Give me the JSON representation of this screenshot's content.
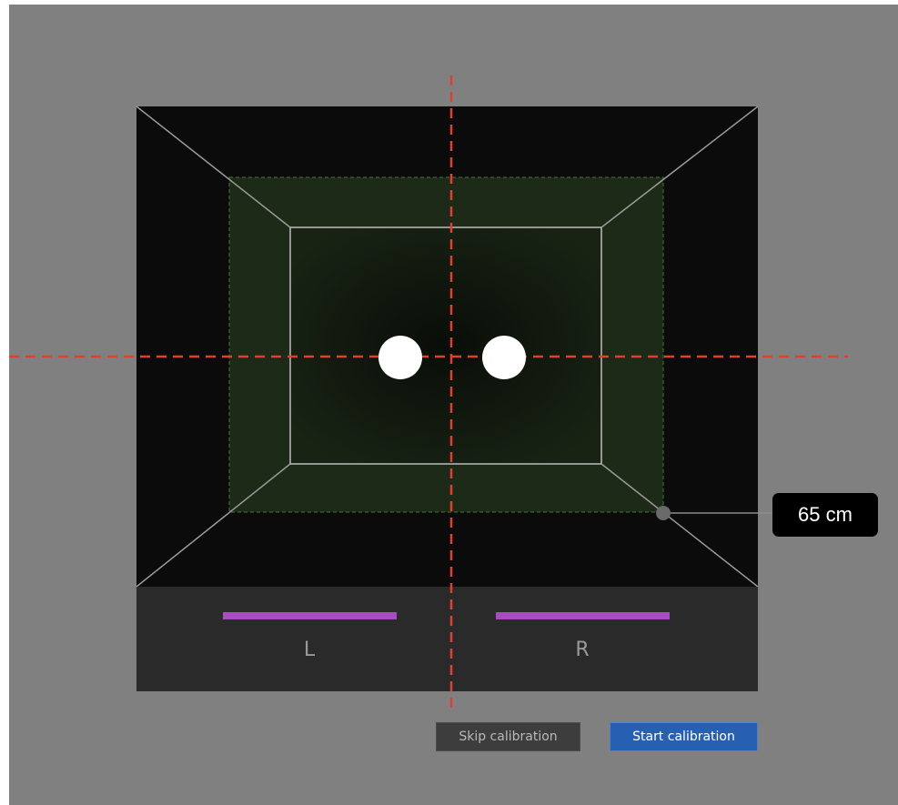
{
  "distance": {
    "value": 65,
    "unit": "cm",
    "label": "65 cm"
  },
  "eyes": {
    "left": {
      "label": "L",
      "indicator_color": "#a64dbf"
    },
    "right": {
      "label": "R",
      "indicator_color": "#a64dbf"
    }
  },
  "buttons": {
    "skip_label": "Skip calibration",
    "start_label": "Start calibration"
  },
  "colors": {
    "background": "#808080",
    "track_box": "#0b0b0b",
    "eye_panel": "#2a2a2a",
    "good_zone": "#1c2a17",
    "crosshair": "#e04030",
    "start_button": "#2760b2"
  }
}
